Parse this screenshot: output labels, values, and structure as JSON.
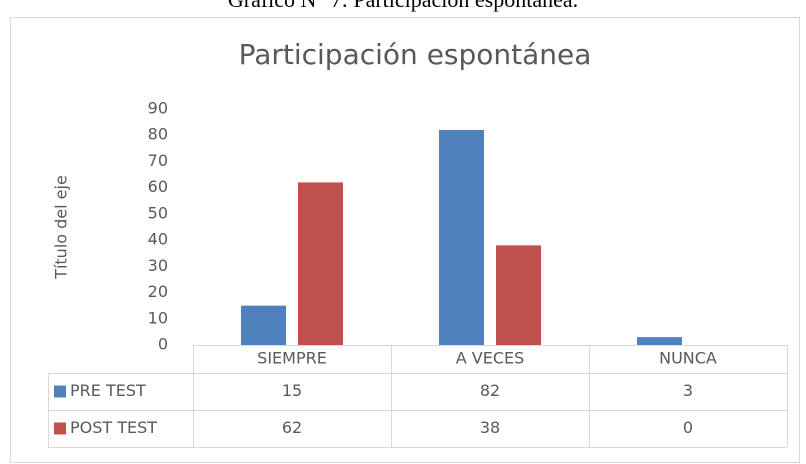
{
  "caption": "Gráfico N° 7: Participación espontánea.",
  "chart_data": {
    "type": "bar",
    "title": "Participación espontánea",
    "ylabel": "Título del eje",
    "categories": [
      "SIEMPRE",
      "A VECES",
      "NUNCA"
    ],
    "series": [
      {
        "name": "PRE TEST",
        "color": "#4f81bd",
        "values": [
          15,
          82,
          3
        ]
      },
      {
        "name": "POST TEST",
        "color": "#c0504d",
        "values": [
          62,
          38,
          0
        ]
      }
    ],
    "ylim": [
      0,
      90
    ],
    "yticks": [
      0,
      10,
      20,
      30,
      40,
      50,
      60,
      70,
      80,
      90
    ],
    "grid": false,
    "data_table": true
  }
}
